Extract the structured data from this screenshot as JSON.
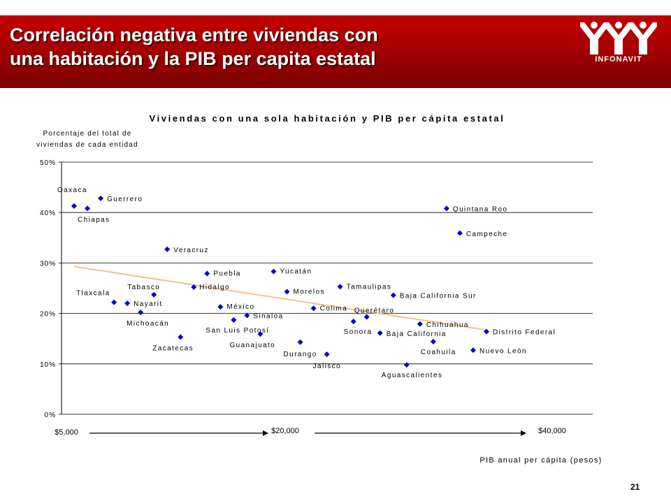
{
  "slide": {
    "title_line1": "Correlación negativa entre viviendas con",
    "title_line2": "una habitación y la PIB per capita estatal",
    "logo_text": "INFONAVIT",
    "page_number": "21"
  },
  "colors": {
    "header_red": "#b00000",
    "marker": "#0000cc",
    "trendline": "#f4c08a"
  },
  "chart_data": {
    "type": "scatter",
    "title": "Viviendas con una sola habitación y PIB per cápita estatal",
    "ylabel_line1": "Porcentaje del total de",
    "ylabel_line2": "viviendas de cada entidad",
    "xlabel": "PIB anual per cápita (pesos)",
    "y_ticks": [
      "0%",
      "10%",
      "20%",
      "30%",
      "40%",
      "50%"
    ],
    "ylim": [
      0,
      50
    ],
    "x_markers": [
      "$5,000",
      "$20,000",
      "$40,000"
    ],
    "grid": "horizontal",
    "points": [
      {
        "label": "Oaxaca",
        "x": 1.0,
        "y": 41.3
      },
      {
        "label": "Chiapas",
        "x": 2.0,
        "y": 40.8
      },
      {
        "label": "Guerrero",
        "x": 3.0,
        "y": 42.8
      },
      {
        "label": "Tlaxcala",
        "x": 4.0,
        "y": 22.2
      },
      {
        "label": "Nayarit",
        "x": 5.0,
        "y": 22.0
      },
      {
        "label": "Michoacán",
        "x": 6.0,
        "y": 20.2
      },
      {
        "label": "Tabasco",
        "x": 7.0,
        "y": 23.7
      },
      {
        "label": "Veracruz",
        "x": 8.0,
        "y": 32.7
      },
      {
        "label": "Zacatecas",
        "x": 9.0,
        "y": 15.3
      },
      {
        "label": "Hidalgo",
        "x": 10.0,
        "y": 25.2
      },
      {
        "label": "Puebla",
        "x": 11.0,
        "y": 27.9
      },
      {
        "label": "México",
        "x": 12.0,
        "y": 21.3
      },
      {
        "label": "San Luis Potosí",
        "x": 13.0,
        "y": 18.7
      },
      {
        "label": "Sinaloa",
        "x": 14.0,
        "y": 19.6
      },
      {
        "label": "Guanajuato",
        "x": 15.0,
        "y": 15.9
      },
      {
        "label": "Yucatán",
        "x": 16.0,
        "y": 28.3
      },
      {
        "label": "Morelos",
        "x": 17.0,
        "y": 24.3
      },
      {
        "label": "Durango",
        "x": 18.0,
        "y": 14.3
      },
      {
        "label": "Colima",
        "x": 19.0,
        "y": 21.0
      },
      {
        "label": "Jalisco",
        "x": 20.0,
        "y": 11.9
      },
      {
        "label": "Tamaulipas",
        "x": 21.0,
        "y": 25.3
      },
      {
        "label": "Sonora",
        "x": 22.0,
        "y": 18.4
      },
      {
        "label": "Querétaro",
        "x": 23.0,
        "y": 19.3
      },
      {
        "label": "Baja California",
        "x": 24.0,
        "y": 16.1
      },
      {
        "label": "Baja California Sur",
        "x": 25.0,
        "y": 23.6
      },
      {
        "label": "Aguascalientes",
        "x": 26.0,
        "y": 9.8
      },
      {
        "label": "Chihuahua",
        "x": 27.0,
        "y": 17.9
      },
      {
        "label": "Coahuila",
        "x": 28.0,
        "y": 14.4
      },
      {
        "label": "Quintana Roo",
        "x": 29.0,
        "y": 40.8
      },
      {
        "label": "Campeche",
        "x": 30.0,
        "y": 35.9
      },
      {
        "label": "Nuevo León",
        "x": 31.0,
        "y": 12.7
      },
      {
        "label": "Distrito Federal",
        "x": 32.0,
        "y": 16.4
      }
    ],
    "trendline": {
      "x": [
        1.0,
        32.0
      ],
      "y": [
        29.3,
        16.7
      ]
    }
  }
}
